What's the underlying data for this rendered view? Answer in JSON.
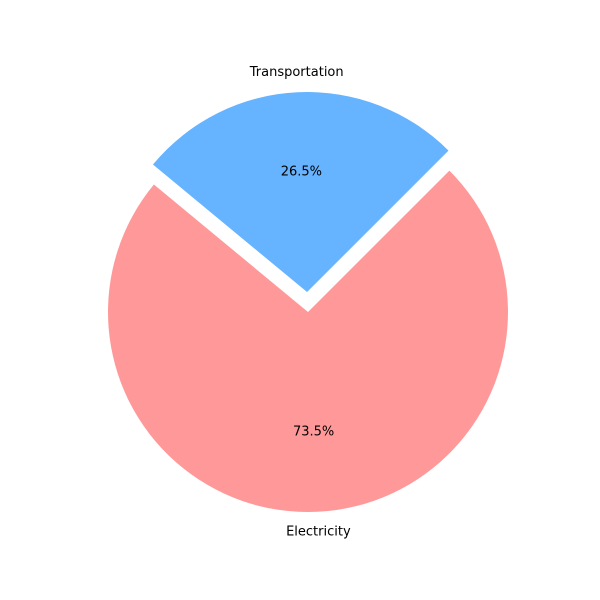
{
  "chart_data": {
    "type": "pie",
    "title": "",
    "start_angle_deg": 45,
    "explode_first": 0.1,
    "slices": [
      {
        "label": "Transportation",
        "value": 26.5,
        "pct_label": "26.5%",
        "color": "#66b3ff"
      },
      {
        "label": "Electricity",
        "value": 73.5,
        "pct_label": "73.5%",
        "color": "#ff9999"
      }
    ]
  }
}
